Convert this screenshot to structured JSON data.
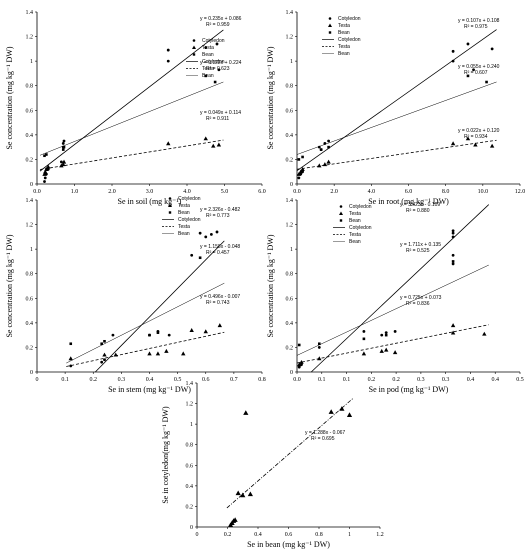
{
  "chart_data": [
    {
      "id": "soil",
      "type": "scatter",
      "xlabel": "Se in soil (mg kg⁻¹)",
      "ylabel": "Se concentration (mg kg⁻¹ DW)",
      "xlim": [
        0,
        6
      ],
      "ylim": [
        0,
        1.4
      ],
      "xticks": [
        "0.0",
        "1.0",
        "2.0",
        "3.0",
        "4.0",
        "5.0",
        "6.0"
      ],
      "yticks": [
        "0",
        "0.2",
        "0.4",
        "0.6",
        "0.8",
        "1",
        "1.2",
        "1.4"
      ],
      "legend": [
        "Cotyledon",
        "Testa",
        "Bean",
        "Cotyledon",
        "Testa",
        "Bean"
      ],
      "series": [
        {
          "name": "Cotyledon",
          "marker": "dot",
          "points": [
            [
              0.2,
              0.02
            ],
            [
              0.22,
              0.05
            ],
            [
              0.25,
              0.08
            ],
            [
              0.3,
              0.12
            ],
            [
              0.65,
              0.18
            ],
            [
              0.7,
              0.3
            ],
            [
              0.7,
              0.33
            ],
            [
              0.72,
              0.35
            ],
            [
              3.5,
              1.0
            ],
            [
              3.5,
              1.09
            ],
            [
              4.5,
              1.11
            ],
            [
              4.8,
              1.14
            ],
            [
              4.85,
              0.93
            ]
          ]
        },
        {
          "name": "Testa",
          "marker": "triangle",
          "points": [
            [
              0.2,
              0.08
            ],
            [
              0.22,
              0.1
            ],
            [
              0.25,
              0.12
            ],
            [
              0.3,
              0.14
            ],
            [
              0.65,
              0.15
            ],
            [
              0.7,
              0.16
            ],
            [
              0.72,
              0.18
            ],
            [
              3.5,
              0.33
            ],
            [
              4.5,
              0.37
            ],
            [
              4.7,
              0.31
            ],
            [
              4.85,
              0.32
            ]
          ]
        },
        {
          "name": "Bean",
          "marker": "square",
          "points": [
            [
              0.2,
              0.23
            ],
            [
              0.25,
              0.24
            ],
            [
              0.7,
              0.28
            ],
            [
              0.72,
              0.3
            ],
            [
              4.5,
              0.88
            ],
            [
              4.75,
              0.83
            ]
          ]
        }
      ],
      "fits": [
        {
          "series": "Cotyledon",
          "style": "solid",
          "slope": 0.235,
          "intercept": 0.086,
          "eq": "y = 0.235x + 0.086",
          "r2": "R² = 0.959"
        },
        {
          "series": "Bean",
          "style": "solid-thin",
          "slope": 0.122,
          "intercept": 0.224,
          "eq": "y = 0.122x + 0.224",
          "r2": "R² = 0.623"
        },
        {
          "series": "Testa",
          "style": "dashed",
          "slope": 0.049,
          "intercept": 0.114,
          "eq": "y = 0.049x + 0.114",
          "r2": "R² = 0.911"
        }
      ]
    },
    {
      "id": "root",
      "type": "scatter",
      "xlabel": "Se in root (mg kg⁻¹ DW)",
      "ylabel": "Se concentration (mg kg⁻¹ DW)",
      "xlim": [
        0,
        12
      ],
      "ylim": [
        0,
        1.4
      ],
      "xticks": [
        "0.0",
        "2.0",
        "4.0",
        "6.0",
        "8.0",
        "10.0",
        "12.0"
      ],
      "yticks": [
        "0",
        "0.2",
        "0.4",
        "0.6",
        "0.8",
        "1",
        "1.2",
        "1.4"
      ],
      "legend": [
        "Cotyledon",
        "Testa",
        "Bean",
        "Cotyledon",
        "Testa",
        "Bean"
      ],
      "series": [
        {
          "name": "Cotyledon",
          "marker": "dot",
          "points": [
            [
              0.1,
              0.05
            ],
            [
              0.2,
              0.08
            ],
            [
              0.3,
              0.1
            ],
            [
              1.2,
              0.3
            ],
            [
              1.3,
              0.28
            ],
            [
              1.5,
              0.33
            ],
            [
              1.7,
              0.35
            ],
            [
              8.4,
              1.0
            ],
            [
              8.4,
              1.08
            ],
            [
              9.2,
              1.14
            ],
            [
              9.5,
              0.93
            ],
            [
              10.5,
              1.1
            ]
          ]
        },
        {
          "name": "Testa",
          "marker": "triangle",
          "points": [
            [
              0.1,
              0.08
            ],
            [
              0.2,
              0.1
            ],
            [
              0.3,
              0.12
            ],
            [
              1.2,
              0.15
            ],
            [
              1.5,
              0.16
            ],
            [
              1.7,
              0.18
            ],
            [
              8.4,
              0.33
            ],
            [
              9.2,
              0.37
            ],
            [
              9.6,
              0.32
            ],
            [
              10.5,
              0.31
            ]
          ]
        },
        {
          "name": "Bean",
          "marker": "square",
          "points": [
            [
              0.1,
              0.2
            ],
            [
              0.3,
              0.22
            ],
            [
              1.3,
              0.28
            ],
            [
              1.7,
              0.3
            ],
            [
              9.2,
              0.88
            ],
            [
              10.2,
              0.83
            ]
          ]
        }
      ],
      "fits": [
        {
          "series": "Cotyledon",
          "style": "solid",
          "slope": 0.107,
          "intercept": 0.108,
          "eq": "y = 0.107x + 0.108",
          "r2": "R² = 0.975"
        },
        {
          "series": "Bean",
          "style": "solid-thin",
          "slope": 0.055,
          "intercept": 0.24,
          "eq": "y = 0.055x + 0.240",
          "r2": "R² = 0.607"
        },
        {
          "series": "Testa",
          "style": "dashed",
          "slope": 0.022,
          "intercept": 0.12,
          "eq": "y = 0.022x + 0.120",
          "r2": "R² = 0.934"
        }
      ]
    },
    {
      "id": "stem",
      "type": "scatter",
      "xlabel": "Se in stem  (mg kg⁻¹ DW)",
      "ylabel": "Se concentration (mg kg⁻¹ DW)",
      "xlim": [
        0,
        0.8
      ],
      "ylim": [
        0,
        1.4
      ],
      "xticks": [
        "0",
        "0.1",
        "0.2",
        "0.3",
        "0.4",
        "0.5",
        "0.6",
        "0.7",
        "0.8"
      ],
      "yticks": [
        "0",
        "0.2",
        "0.4",
        "0.6",
        "0.8",
        "1",
        "1.2",
        "1.4"
      ],
      "legend": [
        "Cotyledon",
        "Testa",
        "Bean",
        "Cotyledon",
        "Testa",
        "Bean"
      ],
      "series": [
        {
          "name": "Cotyledon",
          "marker": "dot",
          "points": [
            [
              0.12,
              0.05
            ],
            [
              0.23,
              0.08
            ],
            [
              0.24,
              0.1
            ],
            [
              0.27,
              0.3
            ],
            [
              0.4,
              0.3
            ],
            [
              0.43,
              0.33
            ],
            [
              0.47,
              0.3
            ],
            [
              0.55,
              0.95
            ],
            [
              0.58,
              1.13
            ],
            [
              0.6,
              1.1
            ],
            [
              0.62,
              1.12
            ],
            [
              0.64,
              1.14
            ]
          ]
        },
        {
          "name": "Testa",
          "marker": "triangle",
          "points": [
            [
              0.12,
              0.11
            ],
            [
              0.24,
              0.14
            ],
            [
              0.28,
              0.14
            ],
            [
              0.4,
              0.15
            ],
            [
              0.43,
              0.15
            ],
            [
              0.46,
              0.17
            ],
            [
              0.52,
              0.15
            ],
            [
              0.55,
              0.34
            ],
            [
              0.6,
              0.33
            ],
            [
              0.65,
              0.38
            ]
          ]
        },
        {
          "name": "Bean",
          "marker": "square",
          "points": [
            [
              0.12,
              0.23
            ],
            [
              0.23,
              0.23
            ],
            [
              0.24,
              0.25
            ],
            [
              0.4,
              0.3
            ],
            [
              0.43,
              0.32
            ],
            [
              0.58,
              0.93
            ]
          ]
        }
      ],
      "fits": [
        {
          "series": "Cotyledon",
          "style": "solid",
          "slope": 2.326,
          "intercept": -0.482,
          "eq": "y = 2.326x - 0.482",
          "r2": "R² = 0.773"
        },
        {
          "series": "Bean",
          "style": "solid-thin",
          "slope": 1.158,
          "intercept": -0.048,
          "eq": "y = 1.158x - 0.048",
          "r2": "R² = 0.457"
        },
        {
          "series": "Testa",
          "style": "dashed",
          "slope": 0.496,
          "intercept": -0.007,
          "eq": "y = 0.496x - 0.007",
          "r2": "R² = 0.743"
        }
      ]
    },
    {
      "id": "pod",
      "type": "scatter",
      "xlabel": "Se in pod  (mg kg⁻¹ DW)",
      "ylabel": "Se concentration (mg kg⁻¹ DW)",
      "xlim": [
        0,
        0.5
      ],
      "ylim": [
        0,
        1.4
      ],
      "xticks": [
        "0.0",
        "0.1",
        "0.1",
        "0.2",
        "0.2",
        "0.3",
        "0.3",
        "0.4",
        "0.4",
        "0.5"
      ],
      "yticks": [
        "0",
        "0.2",
        "0.4",
        "0.6",
        "0.8",
        "1",
        "1.2",
        "1.4"
      ],
      "legend": [
        "Cotyledon",
        "Testa",
        "Bean",
        "Cotyledon",
        "Testa",
        "Bean"
      ],
      "series": [
        {
          "name": "Cotyledon",
          "marker": "dot",
          "points": [
            [
              0.005,
              0.04
            ],
            [
              0.01,
              0.06
            ],
            [
              0.05,
              0.2
            ],
            [
              0.15,
              0.33
            ],
            [
              0.19,
              0.3
            ],
            [
              0.2,
              0.32
            ],
            [
              0.22,
              0.33
            ],
            [
              0.35,
              0.88
            ],
            [
              0.35,
              0.95
            ],
            [
              0.35,
              1.1
            ],
            [
              0.35,
              1.13
            ],
            [
              0.35,
              1.15
            ]
          ]
        },
        {
          "name": "Testa",
          "marker": "triangle",
          "points": [
            [
              0.005,
              0.06
            ],
            [
              0.01,
              0.08
            ],
            [
              0.05,
              0.11
            ],
            [
              0.15,
              0.15
            ],
            [
              0.19,
              0.17
            ],
            [
              0.2,
              0.18
            ],
            [
              0.22,
              0.16
            ],
            [
              0.35,
              0.32
            ],
            [
              0.35,
              0.38
            ],
            [
              0.42,
              0.31
            ]
          ]
        },
        {
          "name": "Bean",
          "marker": "square",
          "points": [
            [
              0.005,
              0.22
            ],
            [
              0.05,
              0.23
            ],
            [
              0.15,
              0.27
            ],
            [
              0.2,
              0.3
            ],
            [
              0.35,
              0.9
            ]
          ]
        }
      ],
      "fits": [
        {
          "series": "Cotyledon",
          "style": "solid",
          "slope": 3.423,
          "intercept": -0.109,
          "eq": "y = 3.423x - 0.109",
          "r2": "R² = 0.880"
        },
        {
          "series": "Bean",
          "style": "solid-thin",
          "slope": 1.711,
          "intercept": 0.135,
          "eq": "y = 1.711x + 0.135",
          "r2": "R² = 0.525"
        },
        {
          "series": "Testa",
          "style": "dashed",
          "slope": 0.725,
          "intercept": 0.073,
          "eq": "y = 0.725x + 0.073",
          "r2": "R² = 0.836"
        }
      ]
    },
    {
      "id": "bean",
      "type": "scatter",
      "xlabel": "Se in bean (mg kg⁻¹ DW)",
      "ylabel": "Se in cotyledon(mg kg⁻¹ DW)",
      "xlim": [
        0,
        1.2
      ],
      "ylim": [
        0,
        1.4
      ],
      "xticks": [
        "0",
        "0.2",
        "0.4",
        "0.6",
        "0.8",
        "1",
        "1.2"
      ],
      "yticks": [
        "0",
        "0.2",
        "0.4",
        "0.6",
        "0.8",
        "1",
        "1.2",
        "1.4"
      ],
      "legend": [],
      "series": [
        {
          "name": "",
          "marker": "triangle",
          "points": [
            [
              0.22,
              0.02
            ],
            [
              0.23,
              0.04
            ],
            [
              0.24,
              0.06
            ],
            [
              0.25,
              0.07
            ],
            [
              0.27,
              0.33
            ],
            [
              0.3,
              0.31
            ],
            [
              0.32,
              1.11
            ],
            [
              0.35,
              0.32
            ],
            [
              0.88,
              1.12
            ],
            [
              0.95,
              1.15
            ],
            [
              1.0,
              1.09
            ]
          ]
        }
      ],
      "fits": [
        {
          "series": "",
          "style": "dashdot",
          "slope": 1.288,
          "intercept": -0.067,
          "eq": "y = 1.288x - 0.067",
          "r2": "R² = 0.695"
        }
      ]
    }
  ]
}
